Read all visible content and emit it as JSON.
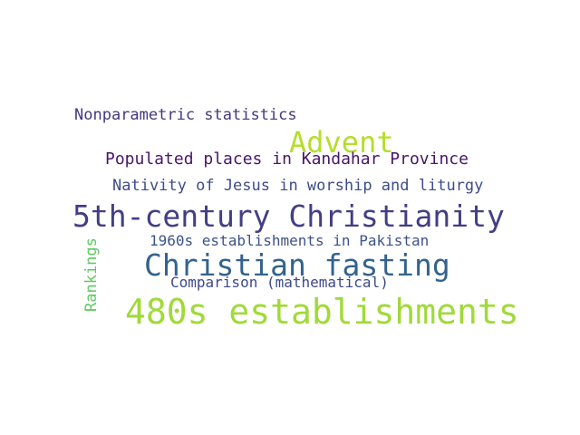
{
  "words": [
    {
      "id": "nonparam",
      "text": "Nonparametric statistics",
      "color": "#453781"
    },
    {
      "id": "advent",
      "text": "Advent",
      "color": "#b5de2b"
    },
    {
      "id": "kandahar",
      "text": "Populated places in Kandahar Province",
      "color": "#481668"
    },
    {
      "id": "nativity",
      "text": "Nativity of Jesus in worship and liturgy",
      "color": "#3e4c8a"
    },
    {
      "id": "fifth",
      "text": "5th-century Christianity",
      "color": "#433e85"
    },
    {
      "id": "1960s",
      "text": "1960s establishments in Pakistan",
      "color": "#3b528b"
    },
    {
      "id": "fasting",
      "text": "Christian fasting",
      "color": "#33638d"
    },
    {
      "id": "comparison",
      "text": "Comparison (mathematical)",
      "color": "#3e4989"
    },
    {
      "id": "480s",
      "text": "480s establishments",
      "color": "#a0da39"
    },
    {
      "id": "rankings",
      "text": "Rankings",
      "color": "#5ec962",
      "orientation": "vertical"
    }
  ]
}
